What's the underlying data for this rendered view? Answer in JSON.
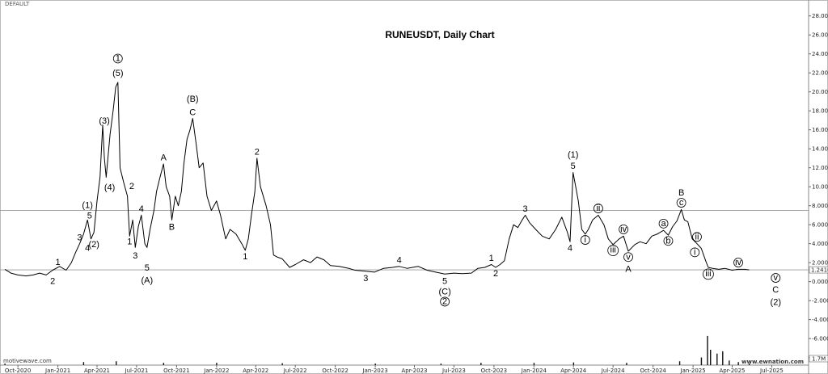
{
  "chart_data": {
    "type": "line",
    "title": "RUNEUSDT, Daily Chart",
    "corner_label": "DEFAULT",
    "watermark_left": "motivewave.com",
    "watermark_right": "www.ewnation.com",
    "price_ticks": [
      "28.0000",
      "26.0000",
      "24.0000",
      "22.0000",
      "20.0000",
      "18.0000",
      "16.0000",
      "14.0000",
      "12.0000",
      "10.0000",
      "8.0000",
      "6.0000",
      "4.0000",
      "2.0000",
      "0.0000",
      "-2.0000",
      "-4.0000",
      "-6.0000",
      "-8.0000"
    ],
    "price_tick_values": [
      28,
      26,
      24,
      22,
      20,
      18,
      16,
      14,
      12,
      10,
      8,
      6,
      4,
      2,
      0,
      -2,
      -4,
      -6,
      -8
    ],
    "current_price_label": "1.2410",
    "current_price": 1.241,
    "volume_label": "1.7M",
    "reference_line_price": 7.5,
    "ylim": [
      -8.8,
      29
    ],
    "x_ticks": [
      "Oct-2020",
      "Jan-2021",
      "Apr-2021",
      "Jul-2021",
      "Oct-2021",
      "Jan-2022",
      "Apr-2022",
      "Jul-2022",
      "Oct-2022",
      "Jan-2023",
      "Apr-2023",
      "Jul-2023",
      "Oct-2023",
      "Jan-2024",
      "Apr-2024",
      "Jul-2024",
      "Oct-2024",
      "Jan-2025",
      "Apr-2025",
      "Jul-2025"
    ],
    "x_tick_dates": [
      "2020-10-01",
      "2021-01-01",
      "2021-04-01",
      "2021-07-01",
      "2021-10-01",
      "2022-01-01",
      "2022-04-01",
      "2022-07-01",
      "2022-10-01",
      "2023-01-01",
      "2023-04-01",
      "2023-07-01",
      "2023-10-01",
      "2024-01-01",
      "2024-04-01",
      "2024-07-01",
      "2024-10-01",
      "2025-01-01",
      "2025-04-01",
      "2025-07-01"
    ],
    "xlim": [
      "2020-09-01",
      "2025-09-20"
    ],
    "series": [
      {
        "color": "#000000",
        "points": [
          [
            "2020-09-01",
            1.3
          ],
          [
            "2020-09-15",
            0.9
          ],
          [
            "2020-10-01",
            0.7
          ],
          [
            "2020-10-20",
            0.6
          ],
          [
            "2020-11-05",
            0.7
          ],
          [
            "2020-11-20",
            0.9
          ],
          [
            "2020-12-05",
            0.7
          ],
          [
            "2020-12-20",
            1.2
          ],
          [
            "2021-01-05",
            1.6
          ],
          [
            "2021-01-20",
            1.2
          ],
          [
            "2021-02-01",
            2.0
          ],
          [
            "2021-02-10",
            3.0
          ],
          [
            "2021-02-20",
            4.0
          ],
          [
            "2021-03-01",
            5.0
          ],
          [
            "2021-03-10",
            6.5
          ],
          [
            "2021-03-18",
            4.5
          ],
          [
            "2021-03-25",
            5.2
          ],
          [
            "2021-04-01",
            8.5
          ],
          [
            "2021-04-08",
            11.0
          ],
          [
            "2021-04-14",
            16.5
          ],
          [
            "2021-04-18",
            13.0
          ],
          [
            "2021-04-22",
            11.0
          ],
          [
            "2021-05-01",
            15.5
          ],
          [
            "2021-05-08",
            18.0
          ],
          [
            "2021-05-14",
            20.5
          ],
          [
            "2021-05-19",
            21.0
          ],
          [
            "2021-05-24",
            12.0
          ],
          [
            "2021-06-01",
            10.5
          ],
          [
            "2021-06-10",
            9.0
          ],
          [
            "2021-06-15",
            4.8
          ],
          [
            "2021-06-22",
            6.5
          ],
          [
            "2021-06-28",
            3.6
          ],
          [
            "2021-07-05",
            5.8
          ],
          [
            "2021-07-12",
            7.0
          ],
          [
            "2021-07-20",
            4.0
          ],
          [
            "2021-07-25",
            3.6
          ],
          [
            "2021-08-01",
            5.5
          ],
          [
            "2021-08-10",
            7.5
          ],
          [
            "2021-08-16",
            9.5
          ],
          [
            "2021-08-24",
            11.0
          ],
          [
            "2021-09-01",
            12.4
          ],
          [
            "2021-09-07",
            10.0
          ],
          [
            "2021-09-15",
            9.0
          ],
          [
            "2021-09-20",
            6.5
          ],
          [
            "2021-09-28",
            9.0
          ],
          [
            "2021-10-05",
            8.0
          ],
          [
            "2021-10-12",
            9.5
          ],
          [
            "2021-10-18",
            12.5
          ],
          [
            "2021-10-25",
            15.0
          ],
          [
            "2021-11-01",
            16.0
          ],
          [
            "2021-11-07",
            17.2
          ],
          [
            "2021-11-15",
            14.5
          ],
          [
            "2021-11-22",
            12.0
          ],
          [
            "2021-12-01",
            12.5
          ],
          [
            "2021-12-10",
            9.0
          ],
          [
            "2021-12-20",
            7.5
          ],
          [
            "2022-01-01",
            8.5
          ],
          [
            "2022-01-10",
            7.0
          ],
          [
            "2022-01-22",
            4.5
          ],
          [
            "2022-02-01",
            5.5
          ],
          [
            "2022-02-15",
            5.0
          ],
          [
            "2022-02-28",
            4.0
          ],
          [
            "2022-03-08",
            3.3
          ],
          [
            "2022-03-15",
            4.5
          ],
          [
            "2022-03-22",
            7.0
          ],
          [
            "2022-03-30",
            9.5
          ],
          [
            "2022-04-04",
            13.0
          ],
          [
            "2022-04-12",
            10.0
          ],
          [
            "2022-04-25",
            8.0
          ],
          [
            "2022-05-05",
            6.0
          ],
          [
            "2022-05-12",
            2.8
          ],
          [
            "2022-05-20",
            2.6
          ],
          [
            "2022-06-01",
            2.4
          ],
          [
            "2022-06-18",
            1.5
          ],
          [
            "2022-07-01",
            1.8
          ],
          [
            "2022-07-20",
            2.3
          ],
          [
            "2022-08-05",
            2.0
          ],
          [
            "2022-08-20",
            2.6
          ],
          [
            "2022-09-05",
            2.3
          ],
          [
            "2022-09-20",
            1.7
          ],
          [
            "2022-10-10",
            1.6
          ],
          [
            "2022-11-01",
            1.4
          ],
          [
            "2022-11-15",
            1.2
          ],
          [
            "2022-12-10",
            1.1
          ],
          [
            "2022-12-30",
            1.0
          ],
          [
            "2023-01-20",
            1.4
          ],
          [
            "2023-02-10",
            1.5
          ],
          [
            "2023-02-25",
            1.6
          ],
          [
            "2023-03-15",
            1.4
          ],
          [
            "2023-04-10",
            1.6
          ],
          [
            "2023-04-30",
            1.2
          ],
          [
            "2023-05-20",
            1.0
          ],
          [
            "2023-06-10",
            0.8
          ],
          [
            "2023-07-01",
            0.9
          ],
          [
            "2023-07-20",
            0.85
          ],
          [
            "2023-08-10",
            0.9
          ],
          [
            "2023-08-25",
            1.4
          ],
          [
            "2023-09-10",
            1.5
          ],
          [
            "2023-09-25",
            1.8
          ],
          [
            "2023-10-05",
            1.5
          ],
          [
            "2023-10-15",
            1.8
          ],
          [
            "2023-10-25",
            2.2
          ],
          [
            "2023-11-05",
            4.5
          ],
          [
            "2023-11-15",
            6.0
          ],
          [
            "2023-11-25",
            5.7
          ],
          [
            "2023-12-05",
            6.5
          ],
          [
            "2023-12-12",
            7.0
          ],
          [
            "2023-12-22",
            6.2
          ],
          [
            "2024-01-05",
            5.5
          ],
          [
            "2024-01-20",
            4.8
          ],
          [
            "2024-02-05",
            4.5
          ],
          [
            "2024-02-20",
            5.5
          ],
          [
            "2024-03-05",
            6.8
          ],
          [
            "2024-03-18",
            5.2
          ],
          [
            "2024-03-24",
            4.2
          ],
          [
            "2024-03-31",
            11.5
          ],
          [
            "2024-04-06",
            10.0
          ],
          [
            "2024-04-12",
            8.5
          ],
          [
            "2024-04-20",
            5.5
          ],
          [
            "2024-04-28",
            5.0
          ],
          [
            "2024-05-05",
            5.5
          ],
          [
            "2024-05-15",
            6.5
          ],
          [
            "2024-05-28",
            7.0
          ],
          [
            "2024-06-10",
            6.0
          ],
          [
            "2024-06-20",
            4.5
          ],
          [
            "2024-07-01",
            3.9
          ],
          [
            "2024-07-15",
            4.5
          ],
          [
            "2024-07-25",
            4.8
          ],
          [
            "2024-08-05",
            3.2
          ],
          [
            "2024-08-20",
            3.9
          ],
          [
            "2024-09-01",
            4.2
          ],
          [
            "2024-09-15",
            4.0
          ],
          [
            "2024-09-28",
            4.8
          ],
          [
            "2024-10-10",
            5.0
          ],
          [
            "2024-10-25",
            5.4
          ],
          [
            "2024-11-05",
            4.9
          ],
          [
            "2024-11-15",
            5.8
          ],
          [
            "2024-11-25",
            6.4
          ],
          [
            "2024-12-05",
            7.6
          ],
          [
            "2024-12-12",
            6.5
          ],
          [
            "2024-12-20",
            6.3
          ],
          [
            "2024-12-30",
            4.5
          ],
          [
            "2025-01-10",
            4.0
          ],
          [
            "2025-01-20",
            3.5
          ],
          [
            "2025-01-30",
            2.2
          ],
          [
            "2025-02-05",
            1.5
          ],
          [
            "2025-02-15",
            1.4
          ],
          [
            "2025-03-01",
            1.3
          ],
          [
            "2025-03-15",
            1.4
          ],
          [
            "2025-04-01",
            1.2
          ],
          [
            "2025-04-15",
            1.3
          ],
          [
            "2025-04-30",
            1.3
          ],
          [
            "2025-05-10",
            1.241
          ]
        ]
      }
    ],
    "volume": [
      [
        "2020-09-01",
        0.2
      ],
      [
        "2021-03-01",
        0.4
      ],
      [
        "2021-05-15",
        0.5
      ],
      [
        "2021-09-01",
        0.3
      ],
      [
        "2022-01-01",
        0.3
      ],
      [
        "2022-06-01",
        0.25
      ],
      [
        "2023-01-01",
        0.2
      ],
      [
        "2023-06-01",
        0.2
      ],
      [
        "2023-09-01",
        0.3
      ],
      [
        "2024-01-01",
        0.3
      ],
      [
        "2024-04-01",
        0.35
      ],
      [
        "2024-08-01",
        0.3
      ],
      [
        "2024-12-01",
        0.5
      ],
      [
        "2025-01-20",
        1.0
      ],
      [
        "2025-02-03",
        3.8
      ],
      [
        "2025-02-10",
        2.0
      ],
      [
        "2025-02-25",
        1.5
      ],
      [
        "2025-03-10",
        1.8
      ],
      [
        "2025-03-25",
        0.6
      ],
      [
        "2025-04-15",
        0.4
      ],
      [
        "2025-05-10",
        0.2
      ]
    ],
    "annotations": [
      {
        "label": "1",
        "date": "2021-01-01",
        "price": 1.6,
        "place": "above"
      },
      {
        "label": "2",
        "date": "2020-12-20",
        "price": 0.6,
        "place": "below"
      },
      {
        "label": "3",
        "date": "2021-02-20",
        "price": 4.2,
        "place": "above"
      },
      {
        "label": "4",
        "date": "2021-03-10",
        "price": 4.1,
        "place": "below"
      },
      {
        "label": "5",
        "date": "2021-03-15",
        "price": 6.5,
        "place": "above"
      },
      {
        "label": "(1)",
        "date": "2021-03-10",
        "price": 7.6,
        "place": "above"
      },
      {
        "label": "(2)",
        "date": "2021-03-25",
        "price": 4.5,
        "place": "below"
      },
      {
        "label": "(3)",
        "date": "2021-04-18",
        "price": 16.5,
        "place": "above"
      },
      {
        "label": "(4)",
        "date": "2021-04-30",
        "price": 10.5,
        "place": "below"
      },
      {
        "label": "(5)",
        "date": "2021-05-19",
        "price": 21.5,
        "place": "above"
      },
      {
        "label": "1",
        "date": "2021-05-19",
        "price": 23.0,
        "place": "above",
        "circled": true
      },
      {
        "label": "1",
        "date": "2021-06-15",
        "price": 4.8,
        "place": "below"
      },
      {
        "label": "2",
        "date": "2021-06-20",
        "price": 9.6,
        "place": "above"
      },
      {
        "label": "3",
        "date": "2021-06-28",
        "price": 3.3,
        "place": "below"
      },
      {
        "label": "4",
        "date": "2021-07-12",
        "price": 7.2,
        "place": "above"
      },
      {
        "label": "5",
        "date": "2021-07-25",
        "price": 2.0,
        "place": "below"
      },
      {
        "label": "(A)",
        "date": "2021-07-25",
        "price": 0.7,
        "place": "below"
      },
      {
        "label": "A",
        "date": "2021-09-01",
        "price": 12.6,
        "place": "above"
      },
      {
        "label": "B",
        "date": "2021-09-20",
        "price": 6.3,
        "place": "below"
      },
      {
        "label": "C",
        "date": "2021-11-07",
        "price": 17.4,
        "place": "above"
      },
      {
        "label": "(B)",
        "date": "2021-11-07",
        "price": 18.8,
        "place": "above"
      },
      {
        "label": "1",
        "date": "2022-03-08",
        "price": 3.2,
        "place": "below"
      },
      {
        "label": "2",
        "date": "2022-04-04",
        "price": 13.2,
        "place": "above"
      },
      {
        "label": "3",
        "date": "2022-12-10",
        "price": 0.9,
        "place": "below"
      },
      {
        "label": "4",
        "date": "2023-02-25",
        "price": 1.8,
        "place": "above"
      },
      {
        "label": "5",
        "date": "2023-06-10",
        "price": 0.6,
        "place": "below"
      },
      {
        "label": "(C)",
        "date": "2023-06-10",
        "price": -0.5,
        "place": "below"
      },
      {
        "label": "2",
        "date": "2023-06-10",
        "price": -1.6,
        "place": "below",
        "circled": true
      },
      {
        "label": "1",
        "date": "2023-09-25",
        "price": 2.0,
        "place": "above"
      },
      {
        "label": "2",
        "date": "2023-10-05",
        "price": 1.4,
        "place": "below"
      },
      {
        "label": "3",
        "date": "2023-12-12",
        "price": 7.2,
        "place": "above"
      },
      {
        "label": "4",
        "date": "2024-03-24",
        "price": 4.1,
        "place": "below"
      },
      {
        "label": "5",
        "date": "2024-03-31",
        "price": 11.7,
        "place": "above"
      },
      {
        "label": "(1)",
        "date": "2024-03-31",
        "price": 12.9,
        "place": "above"
      },
      {
        "label": "i",
        "date": "2024-04-28",
        "price": 4.9,
        "place": "below",
        "circled": true
      },
      {
        "label": "ii",
        "date": "2024-05-28",
        "price": 7.2,
        "place": "above",
        "circled": true
      },
      {
        "label": "iii",
        "date": "2024-07-01",
        "price": 3.8,
        "place": "below",
        "circled": true
      },
      {
        "label": "iv",
        "date": "2024-07-25",
        "price": 5.0,
        "place": "above",
        "circled": true
      },
      {
        "label": "v",
        "date": "2024-08-05",
        "price": 3.1,
        "place": "below",
        "circled": true
      },
      {
        "label": "A",
        "date": "2024-08-05",
        "price": 1.9,
        "place": "below"
      },
      {
        "label": "a",
        "date": "2024-10-25",
        "price": 5.6,
        "place": "above",
        "circled": true
      },
      {
        "label": "b",
        "date": "2024-11-05",
        "price": 4.8,
        "place": "below",
        "circled": true
      },
      {
        "label": "c",
        "date": "2024-12-05",
        "price": 7.8,
        "place": "above",
        "circled": true
      },
      {
        "label": "B",
        "date": "2024-12-05",
        "price": 8.9,
        "place": "above"
      },
      {
        "label": "ii",
        "date": "2025-01-10",
        "price": 4.2,
        "place": "above",
        "circled": true
      },
      {
        "label": "i",
        "date": "2025-01-05",
        "price": 3.6,
        "place": "below",
        "circled": true
      },
      {
        "label": "iii",
        "date": "2025-02-05",
        "price": 1.3,
        "place": "below",
        "circled": true
      },
      {
        "label": "iv",
        "date": "2025-04-15",
        "price": 1.5,
        "place": "above",
        "circled": true
      },
      {
        "label": "v",
        "date": "2025-07-10",
        "price": 0.9,
        "place": "below",
        "circled": true
      },
      {
        "label": "C",
        "date": "2025-07-10",
        "price": -0.3,
        "place": "below"
      },
      {
        "label": "(2)",
        "date": "2025-07-10",
        "price": -1.6,
        "place": "below"
      }
    ]
  }
}
